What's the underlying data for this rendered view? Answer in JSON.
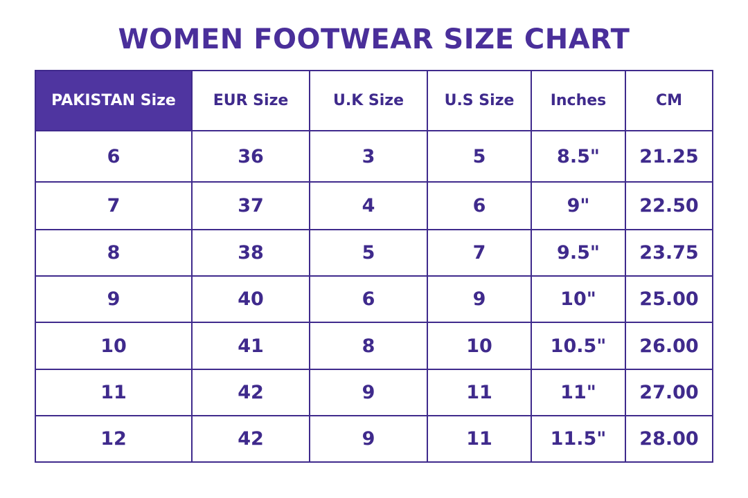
{
  "title": "WOMEN FOOTWEAR SIZE CHART",
  "colors": {
    "header_fill": "#4f35a0",
    "text": "#3f2a8c",
    "border": "#3f2a8c"
  },
  "table": {
    "headers": [
      "PAKISTAN Size",
      "EUR Size",
      "U.K Size",
      "U.S Size",
      "Inches",
      "CM"
    ],
    "rows": [
      [
        "6",
        "36",
        "3",
        "5",
        "8.5\"",
        "21.25"
      ],
      [
        "7",
        "37",
        "4",
        "6",
        "9\"",
        "22.50"
      ],
      [
        "8",
        "38",
        "5",
        "7",
        "9.5\"",
        "23.75"
      ],
      [
        "9",
        "40",
        "6",
        "9",
        "10\"",
        "25.00"
      ],
      [
        "10",
        "41",
        "8",
        "10",
        "10.5\"",
        "26.00"
      ],
      [
        "11",
        "42",
        "9",
        "11",
        "11\"",
        "27.00"
      ],
      [
        "12",
        "42",
        "9",
        "11",
        "11.5\"",
        "28.00"
      ]
    ]
  }
}
